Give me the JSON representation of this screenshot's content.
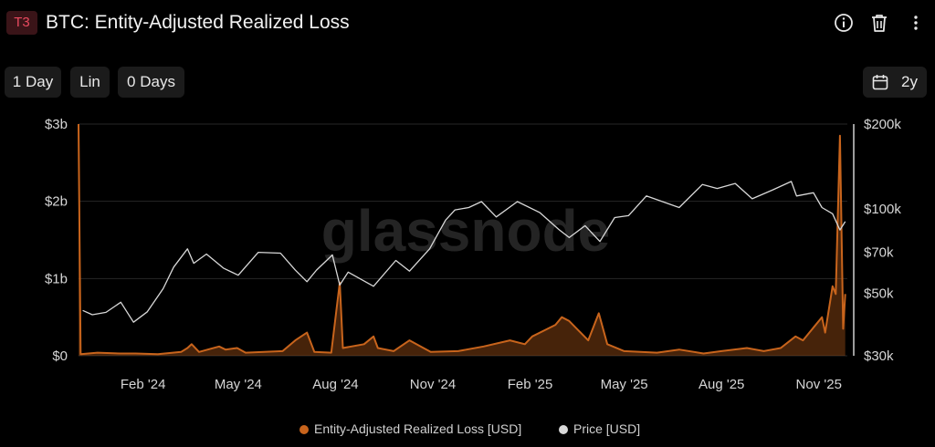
{
  "header": {
    "badge": "T3",
    "title": "BTC: Entity-Adjusted Realized Loss",
    "icons": [
      "info-icon",
      "trash-icon",
      "more-vert-icon"
    ]
  },
  "toolbar": {
    "resolution": "1 Day",
    "scale": "Lin",
    "smoothing": "0 Days",
    "range": "2y",
    "range_icon": "calendar-icon"
  },
  "watermark": "glassnode",
  "colors": {
    "loss": "#c8641c",
    "price": "#d8d8d8",
    "background": "#000000",
    "badge_text": "#e84a5f"
  },
  "chart_data": {
    "type": "line",
    "title": "BTC: Entity-Adjusted Realized Loss",
    "x_tick_labels": [
      "Feb '24",
      "May '24",
      "Aug '24",
      "Nov '24",
      "Feb '25",
      "May '25",
      "Aug '25",
      "Nov '25"
    ],
    "x_ticks": [
      "2024-02-01",
      "2024-05-01",
      "2024-08-01",
      "2024-11-01",
      "2025-02-01",
      "2025-05-01",
      "2025-08-01",
      "2025-11-01"
    ],
    "xlim": [
      "2023-12-02",
      "2025-11-28"
    ],
    "y_left": {
      "tick_labels": [
        "$0",
        "$1b",
        "$2b",
        "$3b"
      ],
      "ticks": [
        0,
        1000000000,
        2000000000,
        3000000000
      ],
      "ylim": [
        0,
        3000000000
      ],
      "scale": "linear"
    },
    "y_right": {
      "tick_labels": [
        "$30k",
        "$50k",
        "$70k",
        "$100k",
        "$200k"
      ],
      "ticks": [
        30000,
        50000,
        70000,
        100000,
        200000
      ],
      "ylim": [
        30000,
        200000
      ],
      "scale": "log"
    },
    "grid": "horizontal",
    "legend_position": "bottom-center",
    "series": [
      {
        "name": "Entity-Adjusted Realized Loss [USD]",
        "axis": "left",
        "style": "area",
        "points": [
          [
            "2023-12-02",
            3000000000
          ],
          [
            "2023-12-04",
            20000000
          ],
          [
            "2023-12-20",
            40000000
          ],
          [
            "2024-01-10",
            30000000
          ],
          [
            "2024-01-25",
            30000000
          ],
          [
            "2024-02-15",
            20000000
          ],
          [
            "2024-03-08",
            50000000
          ],
          [
            "2024-03-14",
            100000000
          ],
          [
            "2024-03-18",
            150000000
          ],
          [
            "2024-03-25",
            50000000
          ],
          [
            "2024-04-13",
            120000000
          ],
          [
            "2024-04-19",
            80000000
          ],
          [
            "2024-04-30",
            100000000
          ],
          [
            "2024-05-08",
            40000000
          ],
          [
            "2024-06-12",
            60000000
          ],
          [
            "2024-06-24",
            200000000
          ],
          [
            "2024-07-05",
            300000000
          ],
          [
            "2024-07-12",
            50000000
          ],
          [
            "2024-07-28",
            40000000
          ],
          [
            "2024-08-05",
            950000000
          ],
          [
            "2024-08-08",
            100000000
          ],
          [
            "2024-08-28",
            150000000
          ],
          [
            "2024-09-06",
            250000000
          ],
          [
            "2024-09-10",
            100000000
          ],
          [
            "2024-09-25",
            60000000
          ],
          [
            "2024-10-10",
            200000000
          ],
          [
            "2024-10-30",
            50000000
          ],
          [
            "2024-11-25",
            60000000
          ],
          [
            "2024-12-19",
            120000000
          ],
          [
            "2025-01-13",
            200000000
          ],
          [
            "2025-01-27",
            150000000
          ],
          [
            "2025-02-03",
            250000000
          ],
          [
            "2025-02-25",
            400000000
          ],
          [
            "2025-03-03",
            500000000
          ],
          [
            "2025-03-10",
            450000000
          ],
          [
            "2025-03-28",
            200000000
          ],
          [
            "2025-04-07",
            550000000
          ],
          [
            "2025-04-15",
            150000000
          ],
          [
            "2025-05-01",
            60000000
          ],
          [
            "2025-06-01",
            40000000
          ],
          [
            "2025-06-22",
            80000000
          ],
          [
            "2025-07-15",
            30000000
          ],
          [
            "2025-08-01",
            60000000
          ],
          [
            "2025-08-25",
            100000000
          ],
          [
            "2025-09-10",
            60000000
          ],
          [
            "2025-09-26",
            100000000
          ],
          [
            "2025-10-10",
            250000000
          ],
          [
            "2025-10-17",
            200000000
          ],
          [
            "2025-11-04",
            500000000
          ],
          [
            "2025-11-07",
            300000000
          ],
          [
            "2025-11-14",
            900000000
          ],
          [
            "2025-11-17",
            800000000
          ],
          [
            "2025-11-21",
            2850000000
          ],
          [
            "2025-11-24",
            350000000
          ],
          [
            "2025-11-26",
            800000000
          ]
        ]
      },
      {
        "name": "Price [USD]",
        "axis": "right",
        "style": "line",
        "points": [
          [
            "2023-12-06",
            43500
          ],
          [
            "2023-12-15",
            42000
          ],
          [
            "2023-12-28",
            42800
          ],
          [
            "2024-01-11",
            46500
          ],
          [
            "2024-01-23",
            39500
          ],
          [
            "2024-02-05",
            43000
          ],
          [
            "2024-02-20",
            52000
          ],
          [
            "2024-03-01",
            62000
          ],
          [
            "2024-03-14",
            72000
          ],
          [
            "2024-03-20",
            64000
          ],
          [
            "2024-04-01",
            69000
          ],
          [
            "2024-04-17",
            61500
          ],
          [
            "2024-05-01",
            58000
          ],
          [
            "2024-05-20",
            70000
          ],
          [
            "2024-06-10",
            69500
          ],
          [
            "2024-06-24",
            60500
          ],
          [
            "2024-07-05",
            55000
          ],
          [
            "2024-07-14",
            60500
          ],
          [
            "2024-07-29",
            68500
          ],
          [
            "2024-08-05",
            53500
          ],
          [
            "2024-08-13",
            59500
          ],
          [
            "2024-09-06",
            53000
          ],
          [
            "2024-09-27",
            65500
          ],
          [
            "2024-10-10",
            60000
          ],
          [
            "2024-10-29",
            72000
          ],
          [
            "2024-11-13",
            91000
          ],
          [
            "2024-11-22",
            99000
          ],
          [
            "2024-12-05",
            101000
          ],
          [
            "2024-12-17",
            106000
          ],
          [
            "2024-12-31",
            93500
          ],
          [
            "2025-01-20",
            106000
          ],
          [
            "2025-02-10",
            97000
          ],
          [
            "2025-02-28",
            84500
          ],
          [
            "2025-03-10",
            79000
          ],
          [
            "2025-03-25",
            87000
          ],
          [
            "2025-04-08",
            76500
          ],
          [
            "2025-04-22",
            93000
          ],
          [
            "2025-05-05",
            94500
          ],
          [
            "2025-05-22",
            111000
          ],
          [
            "2025-06-22",
            101000
          ],
          [
            "2025-07-14",
            122000
          ],
          [
            "2025-07-28",
            118000
          ],
          [
            "2025-08-14",
            123000
          ],
          [
            "2025-08-30",
            108500
          ],
          [
            "2025-09-18",
            116500
          ],
          [
            "2025-10-06",
            125000
          ],
          [
            "2025-10-11",
            111000
          ],
          [
            "2025-10-27",
            114000
          ],
          [
            "2025-11-04",
            101000
          ],
          [
            "2025-11-14",
            96000
          ],
          [
            "2025-11-21",
            84000
          ],
          [
            "2025-11-26",
            90000
          ]
        ]
      }
    ]
  }
}
